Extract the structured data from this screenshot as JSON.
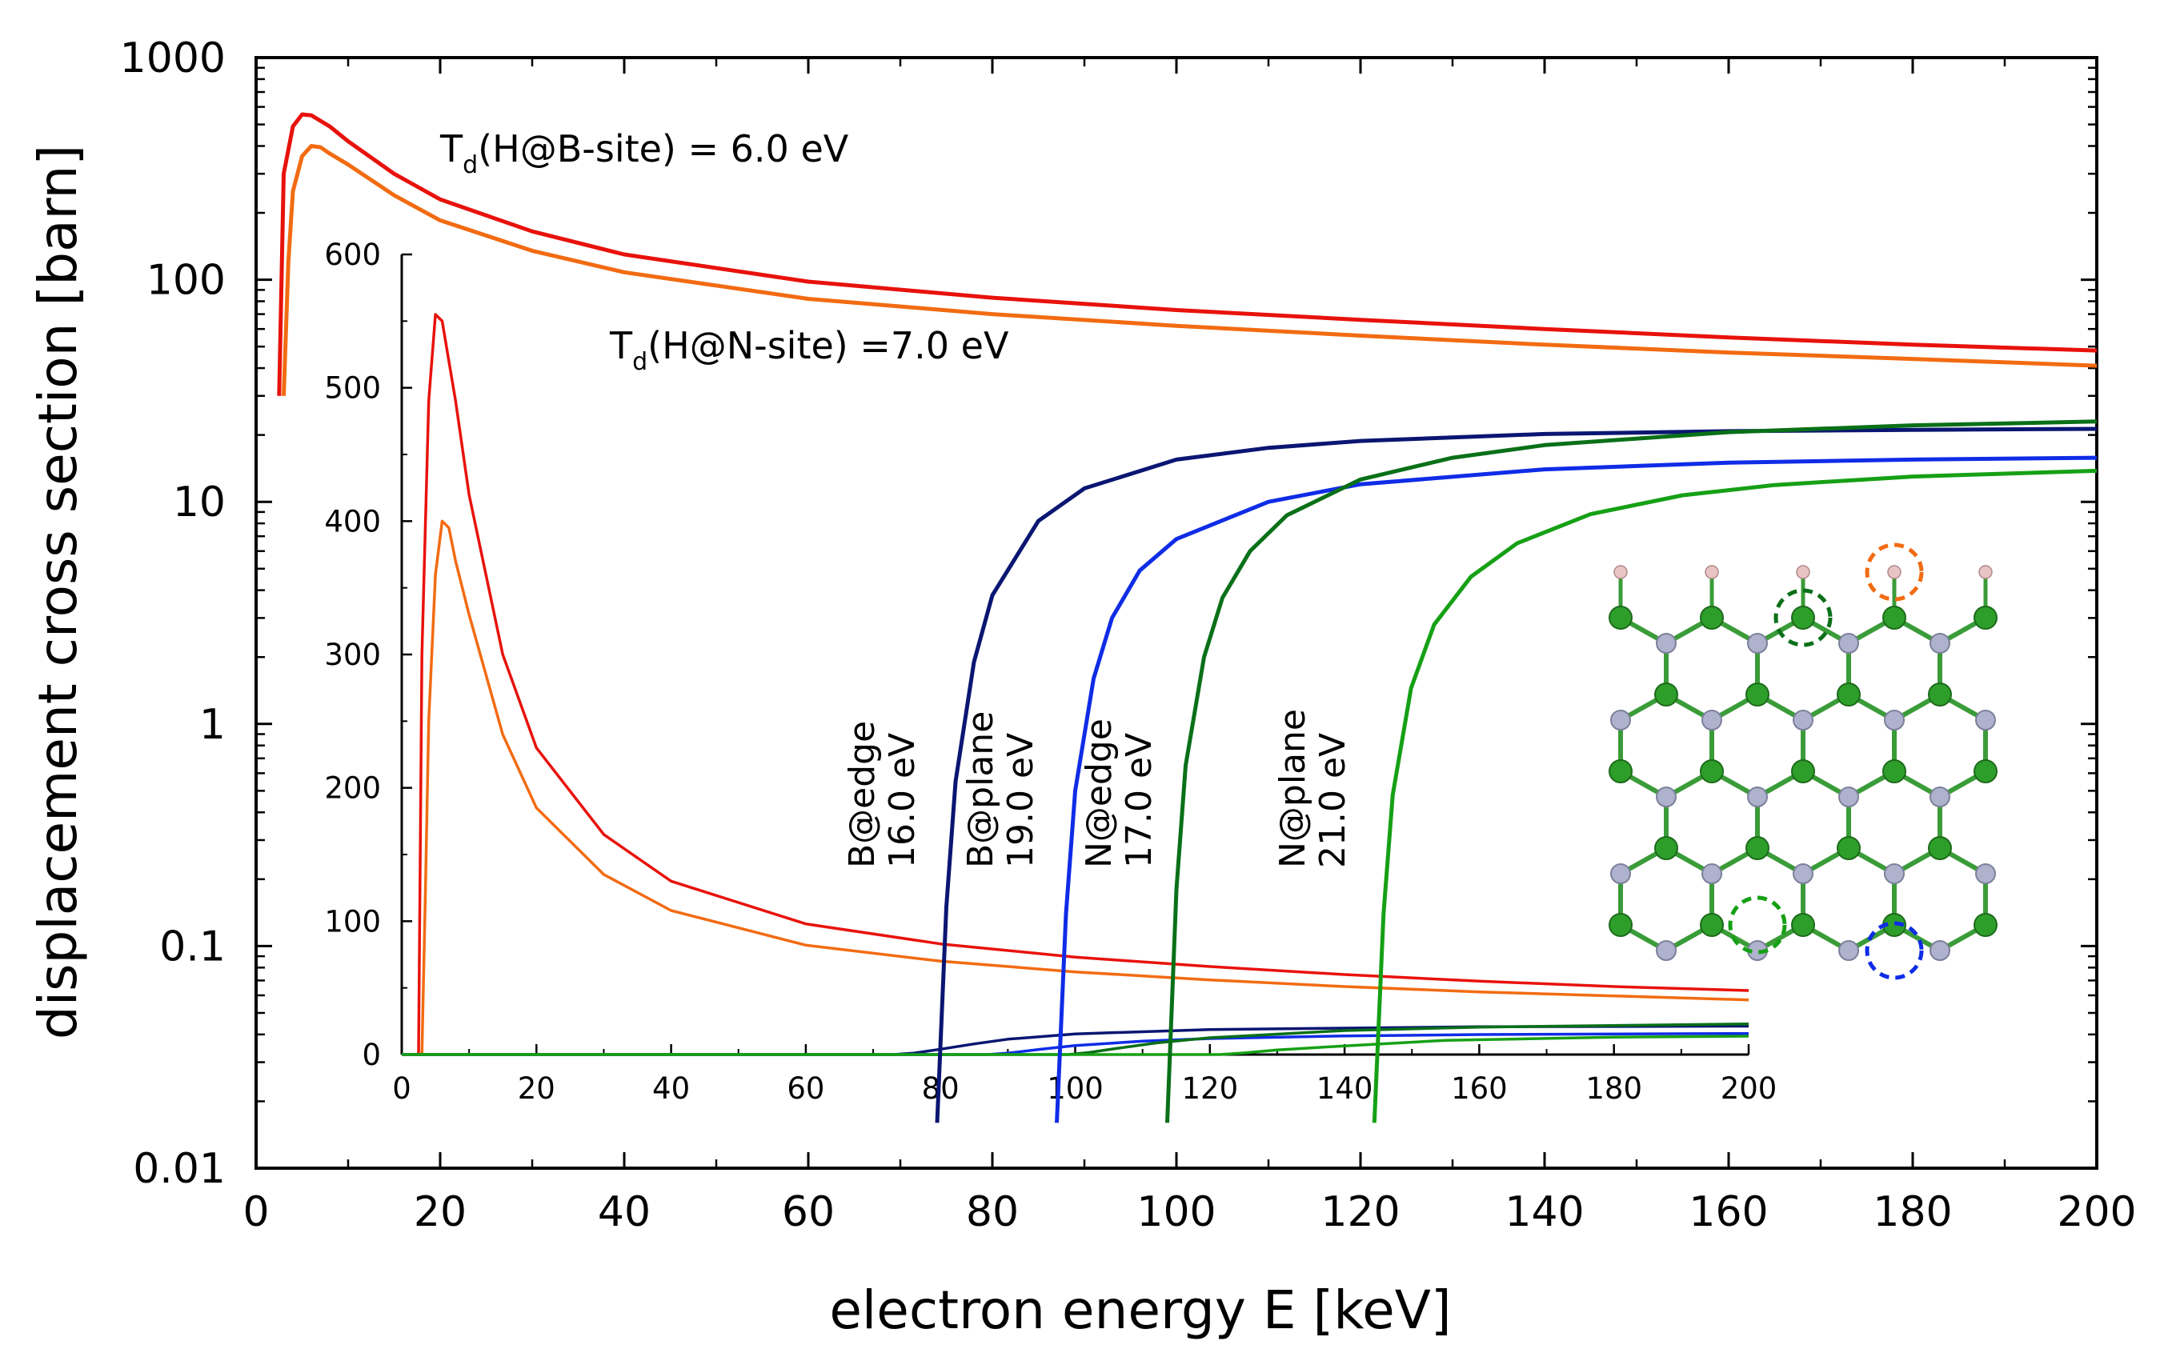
{
  "chart_data": [
    {
      "type": "line",
      "name": "main",
      "xlabel": "electron energy E [keV]",
      "ylabel": "displacement cross section [barn]",
      "xlim": [
        0,
        200
      ],
      "ylim": [
        0.01,
        1000
      ],
      "yscale": "log",
      "x_ticks": [
        "0",
        "20",
        "40",
        "60",
        "80",
        "100",
        "120",
        "140",
        "160",
        "180",
        "200"
      ],
      "y_ticks": [
        "0.01",
        "0.1",
        "1",
        "10",
        "100",
        "1000"
      ],
      "annotations": [
        {
          "main": "T",
          "sub": "d",
          "rest": "(H@B-site) = 6.0 eV"
        },
        {
          "main": "T",
          "sub": "d",
          "rest": "(H@N-site) =7.0 eV"
        }
      ],
      "series": [
        {
          "name": "H@B-site 6.0 eV",
          "color": "#e8120c",
          "x": [
            2.5,
            3,
            4,
            5,
            6,
            8,
            10,
            15,
            20,
            30,
            40,
            60,
            80,
            100,
            120,
            140,
            160,
            180,
            200
          ],
          "y": [
            30,
            300,
            490,
            555,
            550,
            490,
            420,
            300,
            230,
            165,
            130,
            98,
            83,
            73,
            66,
            60,
            55,
            51,
            48
          ]
        },
        {
          "name": "H@N-site 7.0 eV",
          "color": "#f26b12",
          "x": [
            3,
            3.5,
            4,
            5,
            6,
            7,
            8,
            10,
            15,
            20,
            30,
            40,
            60,
            80,
            100,
            120,
            140,
            160,
            180,
            200
          ],
          "y": [
            30,
            120,
            250,
            360,
            400,
            395,
            370,
            330,
            240,
            185,
            135,
            108,
            82,
            70,
            62,
            56,
            51,
            47,
            44,
            41
          ]
        },
        {
          "name": "B@edge 16.0 eV",
          "color": "#0a1672",
          "x": [
            74,
            75,
            76,
            78,
            80,
            85,
            90,
            100,
            110,
            120,
            140,
            160,
            180,
            200
          ],
          "y": [
            0.016,
            0.15,
            0.55,
            1.9,
            3.8,
            8.2,
            11.5,
            15.5,
            17.5,
            18.8,
            20.2,
            20.8,
            21.1,
            21.3
          ]
        },
        {
          "name": "B@plane 19.0 eV",
          "color": "#0f2ce6",
          "x": [
            87,
            88,
            89,
            91,
            93,
            96,
            100,
            110,
            120,
            140,
            160,
            180,
            200
          ],
          "y": [
            0.016,
            0.14,
            0.5,
            1.6,
            3.0,
            4.9,
            6.8,
            10.0,
            12.0,
            14.0,
            15.0,
            15.5,
            15.8
          ]
        },
        {
          "name": "N@edge 17.0 eV",
          "color": "#0a7018",
          "x": [
            99,
            100,
            101,
            103,
            105,
            108,
            112,
            120,
            130,
            140,
            160,
            180,
            200
          ],
          "y": [
            0.016,
            0.18,
            0.65,
            2.0,
            3.7,
            6.0,
            8.7,
            12.6,
            15.8,
            18.0,
            20.6,
            22.1,
            23.0
          ]
        },
        {
          "name": "N@plane 21.0 eV",
          "color": "#16a015",
          "x": [
            121.5,
            122.5,
            123.5,
            125.5,
            128,
            132,
            137,
            145,
            155,
            165,
            180,
            200
          ],
          "y": [
            0.016,
            0.14,
            0.48,
            1.45,
            2.8,
            4.6,
            6.5,
            8.8,
            10.7,
            11.9,
            13.0,
            13.8
          ]
        }
      ]
    },
    {
      "type": "line",
      "name": "inset",
      "xlim": [
        0,
        200
      ],
      "ylim": [
        0,
        600
      ],
      "yscale": "linear",
      "x_ticks": [
        "0",
        "20",
        "40",
        "60",
        "80",
        "100",
        "120",
        "140",
        "160",
        "180",
        "200"
      ],
      "y_ticks": [
        "0",
        "100",
        "200",
        "300",
        "400",
        "500",
        "600"
      ],
      "series": [
        {
          "name": "H@B-site",
          "color": "#e8120c",
          "x": [
            2.5,
            3,
            4,
            5,
            6,
            8,
            10,
            15,
            20,
            30,
            40,
            60,
            80,
            100,
            120,
            140,
            160,
            180,
            200
          ],
          "y": [
            0,
            300,
            490,
            555,
            550,
            490,
            420,
            300,
            230,
            165,
            130,
            98,
            83,
            73,
            66,
            60,
            55,
            51,
            48
          ]
        },
        {
          "name": "H@N-site",
          "color": "#f26b12",
          "x": [
            3,
            3.5,
            4,
            5,
            6,
            7,
            8,
            10,
            15,
            20,
            30,
            40,
            60,
            80,
            100,
            120,
            140,
            160,
            180,
            200
          ],
          "y": [
            0,
            120,
            250,
            360,
            400,
            395,
            370,
            330,
            240,
            185,
            135,
            108,
            82,
            70,
            62,
            56,
            51,
            47,
            44,
            41
          ]
        },
        {
          "name": "B@edge",
          "color": "#0a1672",
          "x": [
            0,
            73,
            76,
            80,
            85,
            90,
            100,
            120,
            160,
            200
          ],
          "y": [
            0,
            0,
            1,
            4,
            8,
            11.5,
            15.5,
            18.8,
            20.8,
            21.3
          ]
        },
        {
          "name": "B@plane",
          "color": "#0f2ce6",
          "x": [
            0,
            87,
            90,
            95,
            100,
            110,
            120,
            140,
            160,
            200
          ],
          "y": [
            0,
            0,
            1,
            4,
            6.8,
            10,
            12,
            14,
            15,
            15.8
          ]
        },
        {
          "name": "N@edge",
          "color": "#0a7018",
          "x": [
            0,
            99,
            102,
            106,
            112,
            120,
            140,
            160,
            200
          ],
          "y": [
            0,
            0,
            1.5,
            4.5,
            8.7,
            12.6,
            18,
            20.6,
            23
          ]
        },
        {
          "name": "N@plane",
          "color": "#16a015",
          "x": [
            0,
            121.5,
            125,
            130,
            140,
            155,
            180,
            200
          ],
          "y": [
            0,
            0,
            1.2,
            3.5,
            6.5,
            10.7,
            13,
            13.8
          ]
        }
      ]
    }
  ],
  "curve_labels": [
    {
      "line1": "B@edge",
      "line2": "16.0 eV"
    },
    {
      "line1": "B@plane",
      "line2": "19.0 eV"
    },
    {
      "line1": "N@edge",
      "line2": "17.0 eV"
    },
    {
      "line1": "N@plane",
      "line2": "21.0 eV"
    }
  ],
  "structure_colors": {
    "B_atom": "#2e9e2a",
    "N_atom": "#aeb2cc",
    "H_atom": "#e9c4c4",
    "marker_B_edge": "#0a7018",
    "marker_B_plane": "#16a015",
    "marker_N_edge": "#f26b12",
    "marker_N_plane": "#0f2ce6"
  }
}
